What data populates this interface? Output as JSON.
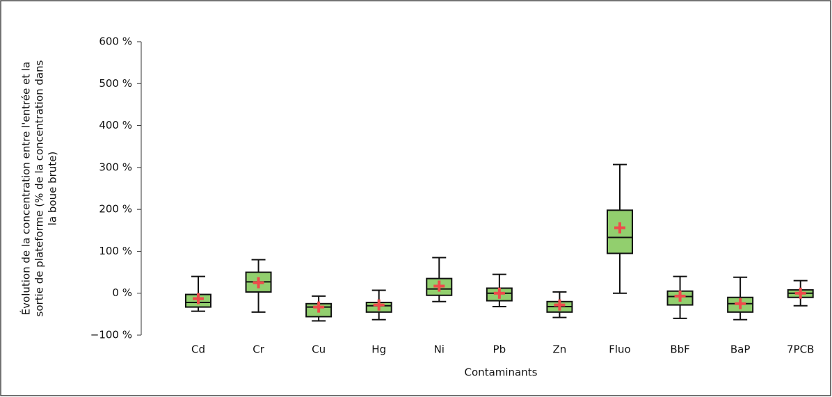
{
  "chart_data": {
    "type": "box",
    "y_label": [
      "Évolution de la concentration entre l'entrée et la",
      "sortie de plateforme (% de la concentration dans",
      "la boue brute)"
    ],
    "x_label": "Contaminants",
    "categories": [
      "Cd",
      "Cr",
      "Cu",
      "Hg",
      "Ni",
      "Pb",
      "Zn",
      "Fluo",
      "BbF",
      "BaP",
      "7PCB"
    ],
    "whisker_low": [
      -43,
      -45,
      -66,
      -63,
      -20,
      -32,
      -58,
      0,
      -60,
      -63,
      -30
    ],
    "q1": [
      -33,
      3,
      -56,
      -45,
      -5,
      -18,
      -45,
      95,
      -28,
      -45,
      -10
    ],
    "median": [
      -22,
      27,
      -33,
      -30,
      10,
      0,
      -32,
      133,
      -8,
      -25,
      0
    ],
    "q3": [
      -3,
      50,
      -25,
      -22,
      35,
      12,
      -20,
      198,
      5,
      -10,
      8
    ],
    "whisker_high": [
      40,
      80,
      -7,
      7,
      85,
      45,
      3,
      307,
      40,
      38,
      30
    ],
    "mean": [
      -13,
      25,
      -33,
      -28,
      17,
      0,
      -28,
      156,
      -7,
      -25,
      0
    ],
    "box_color": "#92cf6e",
    "mean_color": "#ee4b4b",
    "ylim": [
      -100,
      600
    ],
    "yticks": [
      {
        "value": -100,
        "label": "−100 %"
      },
      {
        "value": 0,
        "label": "0 %"
      },
      {
        "value": 100,
        "label": "100 %"
      },
      {
        "value": 200,
        "label": "200 %"
      },
      {
        "value": 300,
        "label": "300 %"
      },
      {
        "value": 400,
        "label": "400 %"
      },
      {
        "value": 500,
        "label": "500 %"
      },
      {
        "value": 600,
        "label": "600 %"
      }
    ]
  }
}
